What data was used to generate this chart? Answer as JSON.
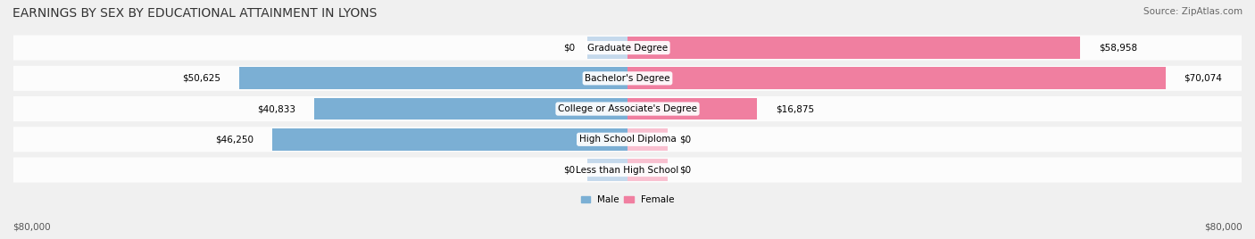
{
  "title": "EARNINGS BY SEX BY EDUCATIONAL ATTAINMENT IN LYONS",
  "source": "Source: ZipAtlas.com",
  "categories": [
    "Less than High School",
    "High School Diploma",
    "College or Associate's Degree",
    "Bachelor's Degree",
    "Graduate Degree"
  ],
  "male_values": [
    0,
    46250,
    40833,
    50625,
    0
  ],
  "female_values": [
    0,
    0,
    16875,
    70074,
    58958
  ],
  "male_labels": [
    "$0",
    "$46,250",
    "$40,833",
    "$50,625",
    "$0"
  ],
  "female_labels": [
    "$0",
    "$0",
    "$16,875",
    "$70,074",
    "$58,958"
  ],
  "male_color": "#7bafd4",
  "female_color": "#f07fa0",
  "male_color_light": "#c5d9ec",
  "female_color_light": "#f9c0d0",
  "max_value": 80000,
  "axis_label_left": "$80,000",
  "axis_label_right": "$80,000",
  "legend_male": "Male",
  "legend_female": "Female",
  "bg_color": "#f0f0f0",
  "bar_bg_color": "#e8e8e8",
  "title_fontsize": 10,
  "source_fontsize": 7.5,
  "label_fontsize": 7.5,
  "category_fontsize": 7.5,
  "axis_fontsize": 7.5
}
